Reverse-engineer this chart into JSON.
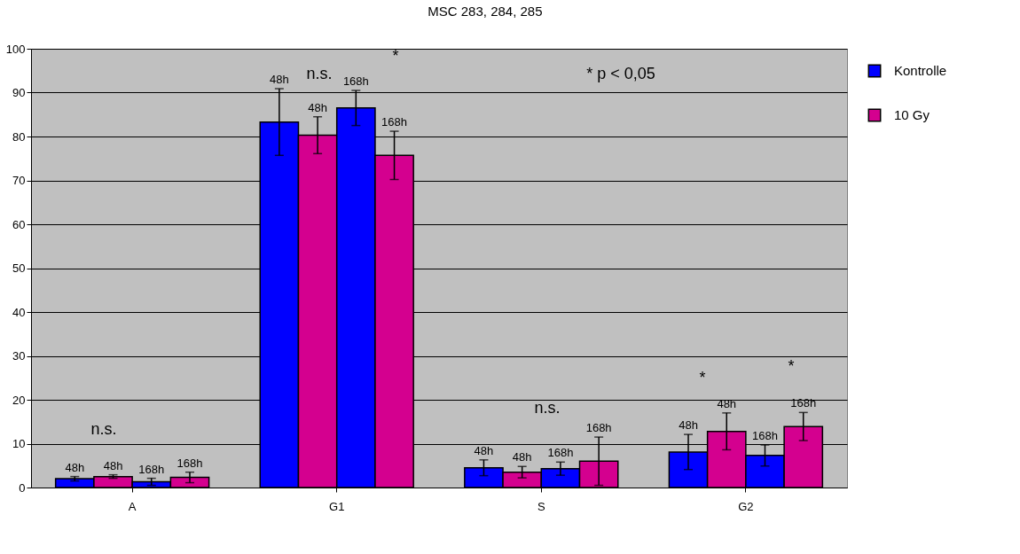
{
  "chart_data": {
    "type": "bar",
    "title": "MSC 283, 284, 285",
    "categories": [
      "A",
      "G1",
      "S",
      "G2"
    ],
    "series": [
      {
        "name": "Kontrolle",
        "color": "#0000ff",
        "values": [
          2.0,
          83.3,
          4.5,
          8.1
        ],
        "errors": [
          0.5,
          7.6,
          1.8,
          4.0
        ]
      },
      {
        "name": "10 Gy",
        "color": "#d4008f",
        "values": [
          2.5,
          80.3,
          3.5,
          12.8
        ],
        "errors": [
          0.4,
          4.2,
          1.3,
          4.2
        ]
      },
      {
        "color": "#0000ff",
        "values": [
          1.3,
          86.5,
          4.3,
          7.3
        ],
        "errors": [
          0.8,
          4.0,
          1.5,
          2.4
        ]
      },
      {
        "color": "#d4008f",
        "values": [
          2.3,
          75.7,
          6.0,
          13.9
        ],
        "errors": [
          1.2,
          5.5,
          5.5,
          3.2
        ]
      }
    ],
    "ylim": [
      0,
      100
    ],
    "yticks": [
      0,
      10,
      20,
      30,
      40,
      50,
      60,
      70,
      80,
      90,
      100
    ],
    "grid": "y",
    "legend": "right",
    "annotations": [
      "48h",
      "48h",
      "168h",
      "168h",
      "48h",
      "48h",
      "168h",
      "168h",
      "48h",
      "48h",
      "168h",
      "168h",
      "48h",
      "48h",
      "168h",
      "168h",
      "n.s.",
      "n.s.",
      "*",
      "n.s.",
      "* p < 0,05",
      "*",
      "*"
    ]
  }
}
